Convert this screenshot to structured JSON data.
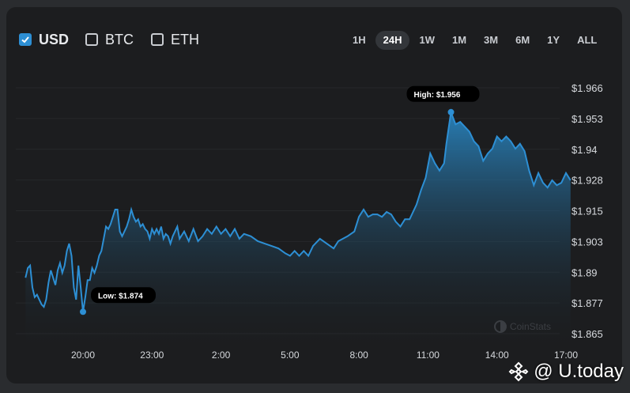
{
  "currencies": [
    {
      "label": "USD",
      "checked": true
    },
    {
      "label": "BTC",
      "checked": false
    },
    {
      "label": "ETH",
      "checked": false
    }
  ],
  "ranges": [
    "1H",
    "24H",
    "1W",
    "1M",
    "3M",
    "6M",
    "1Y",
    "ALL"
  ],
  "active_range": "24H",
  "watermark": "CoinStats",
  "brand": "@ U.today",
  "colors": {
    "line": "#2d8fd4",
    "panel": "#1c1d1f",
    "accent": "#2d8fd4"
  },
  "chart_data": {
    "type": "area",
    "x_ticks": [
      "20:00",
      "23:00",
      "2:00",
      "5:00",
      "8:00",
      "11:00",
      "14:00",
      "17:00"
    ],
    "x_tick_hours": [
      20,
      23,
      26,
      29,
      32,
      35,
      38,
      41
    ],
    "y_ticks": [
      "$1.966",
      "$1.953",
      "$1.94",
      "$1.928",
      "$1.915",
      "$1.903",
      "$1.89",
      "$1.877",
      "$1.865"
    ],
    "ylim": [
      1.865,
      1.966
    ],
    "grid": true,
    "high_label": "High: $1.956",
    "low_label": "Low: $1.874",
    "high": {
      "x": 36.0,
      "y": 1.956
    },
    "low": {
      "x": 20.0,
      "y": 1.874
    },
    "points": [
      [
        17.5,
        1.888
      ],
      [
        17.6,
        1.892
      ],
      [
        17.7,
        1.893
      ],
      [
        17.8,
        1.884
      ],
      [
        17.9,
        1.88
      ],
      [
        18.0,
        1.881
      ],
      [
        18.1,
        1.879
      ],
      [
        18.2,
        1.877
      ],
      [
        18.3,
        1.876
      ],
      [
        18.4,
        1.879
      ],
      [
        18.5,
        1.886
      ],
      [
        18.6,
        1.891
      ],
      [
        18.7,
        1.888
      ],
      [
        18.8,
        1.885
      ],
      [
        18.9,
        1.891
      ],
      [
        19.0,
        1.894
      ],
      [
        19.1,
        1.89
      ],
      [
        19.2,
        1.893
      ],
      [
        19.3,
        1.899
      ],
      [
        19.4,
        1.902
      ],
      [
        19.5,
        1.897
      ],
      [
        19.6,
        1.884
      ],
      [
        19.7,
        1.879
      ],
      [
        19.8,
        1.893
      ],
      [
        19.9,
        1.884
      ],
      [
        20.0,
        1.874
      ],
      [
        20.1,
        1.88
      ],
      [
        20.2,
        1.887
      ],
      [
        20.3,
        1.887
      ],
      [
        20.4,
        1.892
      ],
      [
        20.5,
        1.89
      ],
      [
        20.6,
        1.893
      ],
      [
        20.7,
        1.897
      ],
      [
        20.8,
        1.899
      ],
      [
        20.9,
        1.904
      ],
      [
        21.0,
        1.909
      ],
      [
        21.1,
        1.908
      ],
      [
        21.2,
        1.91
      ],
      [
        21.3,
        1.913
      ],
      [
        21.4,
        1.916
      ],
      [
        21.5,
        1.916
      ],
      [
        21.6,
        1.907
      ],
      [
        21.7,
        1.905
      ],
      [
        21.8,
        1.907
      ],
      [
        21.9,
        1.909
      ],
      [
        22.0,
        1.912
      ],
      [
        22.1,
        1.916
      ],
      [
        22.2,
        1.913
      ],
      [
        22.3,
        1.911
      ],
      [
        22.4,
        1.912
      ],
      [
        22.5,
        1.909
      ],
      [
        22.6,
        1.91
      ],
      [
        22.7,
        1.908
      ],
      [
        22.8,
        1.907
      ],
      [
        22.9,
        1.904
      ],
      [
        23.0,
        1.908
      ],
      [
        23.1,
        1.906
      ],
      [
        23.2,
        1.908
      ],
      [
        23.3,
        1.906
      ],
      [
        23.4,
        1.909
      ],
      [
        23.5,
        1.904
      ],
      [
        23.6,
        1.906
      ],
      [
        23.7,
        1.905
      ],
      [
        23.8,
        1.902
      ],
      [
        23.9,
        1.905
      ],
      [
        24.0,
        1.907
      ],
      [
        24.1,
        1.909
      ],
      [
        24.2,
        1.904
      ],
      [
        24.4,
        1.907
      ],
      [
        24.6,
        1.903
      ],
      [
        24.8,
        1.908
      ],
      [
        25.0,
        1.903
      ],
      [
        25.2,
        1.905
      ],
      [
        25.4,
        1.908
      ],
      [
        25.6,
        1.906
      ],
      [
        25.8,
        1.909
      ],
      [
        26.0,
        1.906
      ],
      [
        26.2,
        1.908
      ],
      [
        26.4,
        1.905
      ],
      [
        26.6,
        1.908
      ],
      [
        26.8,
        1.904
      ],
      [
        27.0,
        1.906
      ],
      [
        27.3,
        1.905
      ],
      [
        27.6,
        1.903
      ],
      [
        27.9,
        1.902
      ],
      [
        28.2,
        1.901
      ],
      [
        28.5,
        1.9
      ],
      [
        28.8,
        1.898
      ],
      [
        29.0,
        1.897
      ],
      [
        29.2,
        1.899
      ],
      [
        29.4,
        1.897
      ],
      [
        29.6,
        1.899
      ],
      [
        29.8,
        1.897
      ],
      [
        30.0,
        1.901
      ],
      [
        30.3,
        1.904
      ],
      [
        30.6,
        1.902
      ],
      [
        30.9,
        1.9
      ],
      [
        31.1,
        1.903
      ],
      [
        31.3,
        1.904
      ],
      [
        31.5,
        1.905
      ],
      [
        31.8,
        1.907
      ],
      [
        32.0,
        1.913
      ],
      [
        32.2,
        1.916
      ],
      [
        32.4,
        1.913
      ],
      [
        32.6,
        1.914
      ],
      [
        32.8,
        1.914
      ],
      [
        33.0,
        1.913
      ],
      [
        33.2,
        1.915
      ],
      [
        33.4,
        1.914
      ],
      [
        33.6,
        1.911
      ],
      [
        33.8,
        1.909
      ],
      [
        34.0,
        1.912
      ],
      [
        34.2,
        1.912
      ],
      [
        34.5,
        1.918
      ],
      [
        34.7,
        1.924
      ],
      [
        34.9,
        1.929
      ],
      [
        35.1,
        1.939
      ],
      [
        35.3,
        1.935
      ],
      [
        35.5,
        1.932
      ],
      [
        35.7,
        1.935
      ],
      [
        35.8,
        1.943
      ],
      [
        36.0,
        1.956
      ],
      [
        36.2,
        1.951
      ],
      [
        36.4,
        1.952
      ],
      [
        36.6,
        1.95
      ],
      [
        36.8,
        1.948
      ],
      [
        37.0,
        1.944
      ],
      [
        37.2,
        1.942
      ],
      [
        37.4,
        1.936
      ],
      [
        37.6,
        1.939
      ],
      [
        37.8,
        1.941
      ],
      [
        38.0,
        1.946
      ],
      [
        38.2,
        1.944
      ],
      [
        38.4,
        1.946
      ],
      [
        38.6,
        1.944
      ],
      [
        38.8,
        1.941
      ],
      [
        39.0,
        1.943
      ],
      [
        39.2,
        1.94
      ],
      [
        39.4,
        1.932
      ],
      [
        39.6,
        1.926
      ],
      [
        39.8,
        1.931
      ],
      [
        40.0,
        1.927
      ],
      [
        40.2,
        1.925
      ],
      [
        40.4,
        1.928
      ],
      [
        40.6,
        1.926
      ],
      [
        40.8,
        1.927
      ],
      [
        41.0,
        1.931
      ],
      [
        41.2,
        1.928
      ]
    ]
  }
}
